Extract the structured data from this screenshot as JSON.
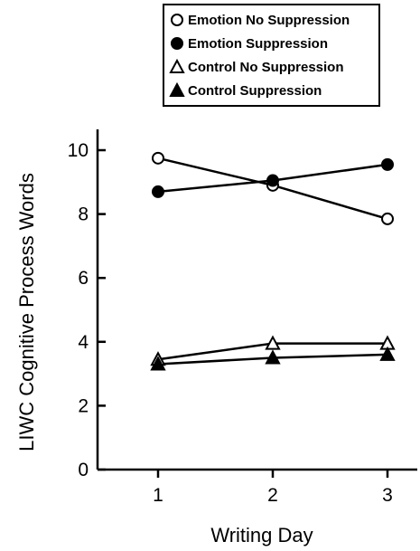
{
  "chart_data": {
    "type": "line",
    "title": "",
    "xlabel": "Writing Day",
    "ylabel": "LIWC Cognitive Process Words",
    "x": [
      1,
      2,
      3
    ],
    "xticks": [
      "1",
      "2",
      "3"
    ],
    "xlim": [
      0.5,
      3.5
    ],
    "ylim": [
      0,
      10.6
    ],
    "yticks": [
      "0",
      "2",
      "4",
      "6",
      "8",
      "10"
    ],
    "grid": false,
    "legend_position": "top",
    "series": [
      {
        "name": "Emotion No Suppression",
        "values": [
          9.75,
          8.9,
          7.85
        ],
        "marker": "circle-open",
        "color": "#000000"
      },
      {
        "name": "Emotion Suppression",
        "values": [
          8.7,
          9.05,
          9.55
        ],
        "marker": "circle-filled",
        "color": "#000000"
      },
      {
        "name": "Control No Suppression",
        "values": [
          3.45,
          3.95,
          3.95
        ],
        "marker": "triangle-open",
        "color": "#000000"
      },
      {
        "name": "Control Suppression",
        "values": [
          3.3,
          3.5,
          3.6
        ],
        "marker": "triangle-filled",
        "color": "#000000"
      }
    ]
  }
}
